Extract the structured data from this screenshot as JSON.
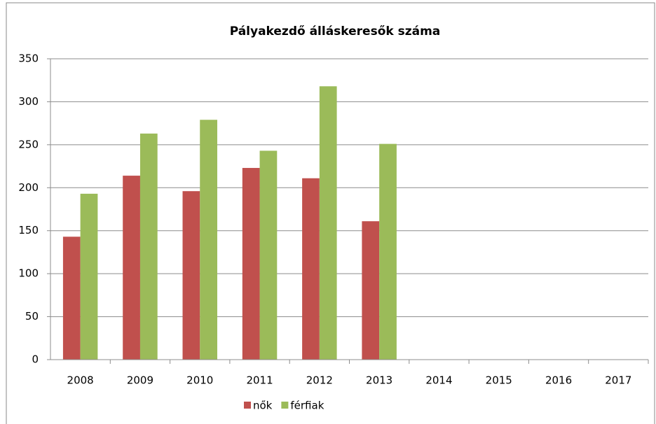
{
  "chart_data": {
    "type": "bar",
    "title": "Pályakezdő álláskeresők száma",
    "categories": [
      "2008",
      "2009",
      "2010",
      "2011",
      "2012",
      "2013",
      "2014",
      "2015",
      "2016",
      "2017"
    ],
    "series": [
      {
        "name": "nők",
        "color": "#c0504d",
        "values": [
          143,
          214,
          196,
          223,
          211,
          161,
          null,
          null,
          null,
          null
        ]
      },
      {
        "name": "férfiak",
        "color": "#9bbb59",
        "values": [
          193,
          263,
          279,
          243,
          318,
          251,
          null,
          null,
          null,
          null
        ]
      }
    ],
    "ylim": [
      0,
      350
    ],
    "yticks": [
      0,
      50,
      100,
      150,
      200,
      250,
      300,
      350
    ],
    "grid": true,
    "legend": "bottom"
  }
}
